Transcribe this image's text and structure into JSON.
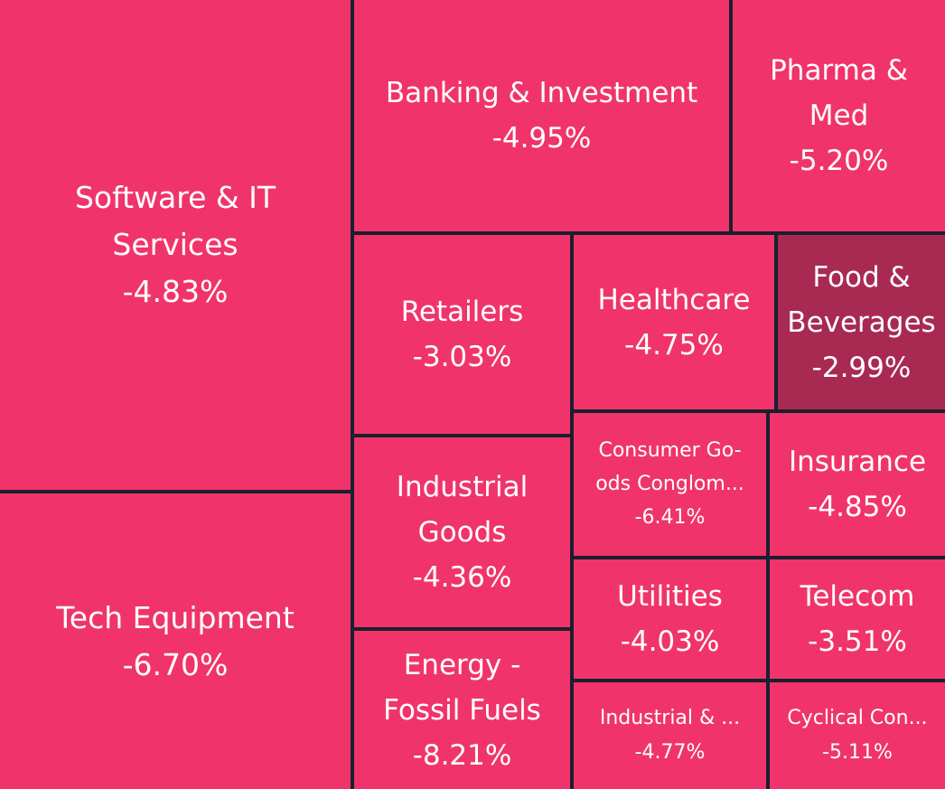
{
  "chart_data": {
    "type": "treemap",
    "metric": "percent change",
    "colors": {
      "background": "#1a1f2e",
      "decline": "#f0346b",
      "mild_decline": "#a82a52",
      "text": "#ffffff"
    },
    "sectors": [
      {
        "id": "software-it-services",
        "name": "Software & IT Services",
        "display_name": "Software & IT\nServices",
        "change": "-4.83%",
        "value": -4.83,
        "color": "#f0346b"
      },
      {
        "id": "tech-equipment",
        "name": "Tech Equipment",
        "display_name": "Tech Equipment",
        "change": "-6.70%",
        "value": -6.7,
        "color": "#f0346b"
      },
      {
        "id": "banking-investment",
        "name": "Banking & Investment",
        "display_name": "Banking & Investment",
        "change": "-4.95%",
        "value": -4.95,
        "color": "#f0346b"
      },
      {
        "id": "pharma-med",
        "name": "Pharma & Med",
        "display_name": "Pharma &\nMed",
        "change": "-5.20%",
        "value": -5.2,
        "color": "#f0346b"
      },
      {
        "id": "retailers",
        "name": "Retailers",
        "display_name": "Retailers",
        "change": "-3.03%",
        "value": -3.03,
        "color": "#f0346b"
      },
      {
        "id": "healthcare",
        "name": "Healthcare",
        "display_name": "Healthcare",
        "change": "-4.75%",
        "value": -4.75,
        "color": "#f0346b"
      },
      {
        "id": "food-beverages",
        "name": "Food & Beverages",
        "display_name": "Food &\nBeverages",
        "change": "-2.99%",
        "value": -2.99,
        "color": "#a82a52"
      },
      {
        "id": "industrial-goods",
        "name": "Industrial Goods",
        "display_name": "Industrial\nGoods",
        "change": "-4.36%",
        "value": -4.36,
        "color": "#f0346b"
      },
      {
        "id": "consumer-goods-conglomerates",
        "name": "Consumer Goods Conglom...",
        "display_name": "Consumer Go-\nods Conglom...",
        "change": "-6.41%",
        "value": -6.41,
        "color": "#f0346b"
      },
      {
        "id": "insurance",
        "name": "Insurance",
        "display_name": "Insurance",
        "change": "-4.85%",
        "value": -4.85,
        "color": "#f0346b"
      },
      {
        "id": "energy-fossil-fuels",
        "name": "Energy - Fossil Fuels",
        "display_name": "Energy -\nFossil Fuels",
        "change": "-8.21%",
        "value": -8.21,
        "color": "#f0346b"
      },
      {
        "id": "utilities",
        "name": "Utilities",
        "display_name": "Utilities",
        "change": "-4.03%",
        "value": -4.03,
        "color": "#f0346b"
      },
      {
        "id": "telecom",
        "name": "Telecom",
        "display_name": "Telecom",
        "change": "-3.51%",
        "value": -3.51,
        "color": "#f0346b"
      },
      {
        "id": "industrial-and",
        "name": "Industrial & ...",
        "display_name": "Industrial & ...",
        "change": "-4.77%",
        "value": -4.77,
        "color": "#f0346b"
      },
      {
        "id": "cyclical-con",
        "name": "Cyclical Con...",
        "display_name": "Cyclical Con...",
        "change": "-5.11%",
        "value": -5.11,
        "color": "#f0346b"
      }
    ]
  }
}
